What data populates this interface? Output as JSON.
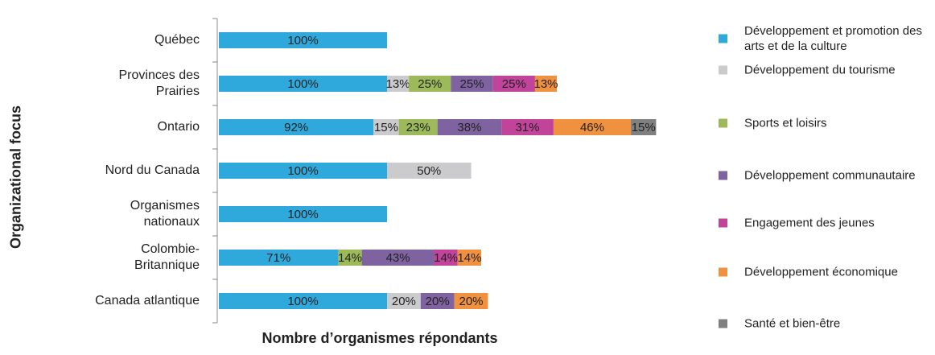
{
  "chart_data": {
    "type": "stacked-bar-horizontal",
    "x_label": "Nombre d’organismes répondants",
    "y_label": "Organizational focus",
    "categories": [
      "Québec",
      "Provinces des Prairies",
      "Ontario",
      "Nord du Canada",
      "Organismes nationaux",
      "Colombie-Britannique",
      "Canada atlantique"
    ],
    "series": [
      {
        "name": "Développement et promotion des arts et de la culture",
        "color": "#2fa9dc",
        "values": [
          100,
          100,
          92,
          100,
          100,
          71,
          100
        ],
        "value_labels": [
          "100%",
          "100%",
          "92%",
          "100%",
          "100%",
          "71%",
          "100%"
        ]
      },
      {
        "name": "Développement du tourisme",
        "color": "#cbcbcd",
        "values": [
          null,
          13,
          15,
          50,
          null,
          null,
          20
        ],
        "value_labels": [
          null,
          "13%",
          "15%",
          "50%",
          null,
          null,
          "20%"
        ]
      },
      {
        "name": "Sports et loisirs",
        "color": "#9cba5a",
        "values": [
          null,
          25,
          23,
          null,
          null,
          14,
          null
        ],
        "value_labels": [
          null,
          "25%",
          "23%",
          null,
          null,
          "14%",
          null
        ]
      },
      {
        "name": "Développement communautaire",
        "color": "#7f62a0",
        "values": [
          null,
          25,
          38,
          null,
          null,
          43,
          20
        ],
        "value_labels": [
          null,
          "25%",
          "38%",
          null,
          null,
          "43%",
          "20%"
        ]
      },
      {
        "name": "Engagement des jeunes",
        "color": "#c2449a",
        "values": [
          null,
          25,
          31,
          null,
          null,
          14,
          null
        ],
        "value_labels": [
          null,
          "25%",
          "31%",
          null,
          null,
          "14%",
          null
        ]
      },
      {
        "name": "Développement économique",
        "color": "#f0913f",
        "values": [
          null,
          13,
          46,
          null,
          null,
          14,
          20
        ],
        "value_labels": [
          null,
          "13%",
          "46%",
          null,
          null,
          "14%",
          "20%"
        ]
      },
      {
        "name": "Santé et bien-être",
        "color": "#808080",
        "values": [
          null,
          null,
          15,
          null,
          null,
          null,
          null
        ],
        "value_labels": [
          null,
          null,
          "15%",
          null,
          null,
          null,
          null
        ]
      }
    ]
  }
}
